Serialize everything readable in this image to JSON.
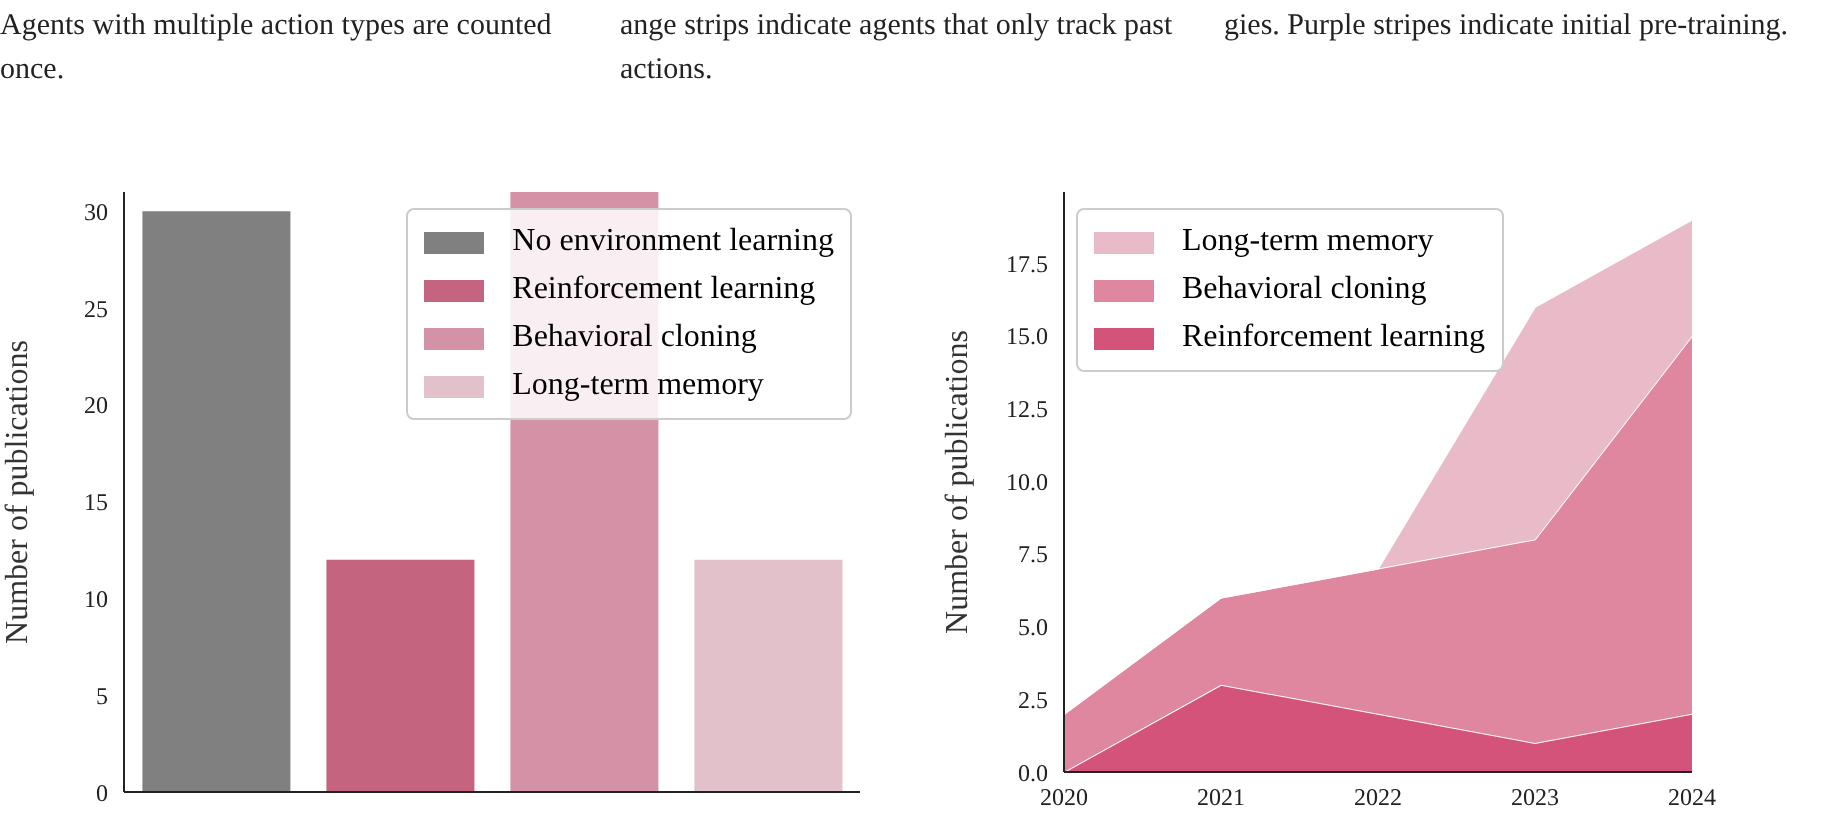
{
  "chart_data": [
    {
      "type": "bar",
      "annotations": [
        "Agents with multiple action types are counted once.",
        "ange strips indicate agents that only track past actions."
      ],
      "ylabel": "Number of publications",
      "categories": [
        null,
        null,
        null,
        null
      ],
      "series": [
        {
          "name": "No environment learning",
          "color": "#808080",
          "values": [
            30,
            null,
            null,
            null
          ]
        },
        {
          "name": "Reinforcement learning",
          "color": "#c4647f",
          "values": [
            null,
            12,
            null,
            null
          ]
        },
        {
          "name": "Behavioral cloning",
          "color": "#d492a7",
          "values": [
            null,
            null,
            31,
            null
          ]
        },
        {
          "name": "Long-term memory",
          "color": "#e2c1ca",
          "values": [
            null,
            null,
            null,
            12
          ]
        }
      ],
      "ylim": [
        0,
        31
      ],
      "yticks": [
        0,
        5,
        10,
        15,
        20,
        25,
        30
      ],
      "grid": false,
      "legend": "top right"
    },
    {
      "type": "area",
      "stacked": true,
      "annotations": [
        "gies. Purple stripes indicate initial pre-training."
      ],
      "ylabel": "Number of publications",
      "x": [
        2020,
        2021,
        2022,
        2023,
        2024
      ],
      "series": [
        {
          "name": "Reinforcement learning",
          "color": "#d4537a",
          "values": [
            0,
            3,
            2,
            1,
            2
          ]
        },
        {
          "name": "Behavioral cloning",
          "color": "#de879f",
          "values": [
            2,
            3,
            5,
            7,
            13
          ]
        },
        {
          "name": "Long-term memory",
          "color": "#e9bac7",
          "values": [
            0,
            0,
            0,
            8,
            4
          ]
        }
      ],
      "xlim": [
        2020,
        2024
      ],
      "xticks": [
        2020,
        2021,
        2022,
        2023,
        2024
      ],
      "ylim": [
        0,
        19.95
      ],
      "yticks": [
        {
          "value": 0,
          "label": "0.0"
        },
        {
          "value": 2.5,
          "label": "2.5"
        },
        {
          "value": 5,
          "label": "5.0"
        },
        {
          "value": 7.5,
          "label": "7.5"
        },
        {
          "value": 10,
          "label": "10.0"
        },
        {
          "value": 12.5,
          "label": "12.5"
        },
        {
          "value": 15,
          "label": "15.0"
        },
        {
          "value": 17.5,
          "label": "17.5"
        }
      ],
      "grid": false,
      "legend": "top left"
    }
  ]
}
